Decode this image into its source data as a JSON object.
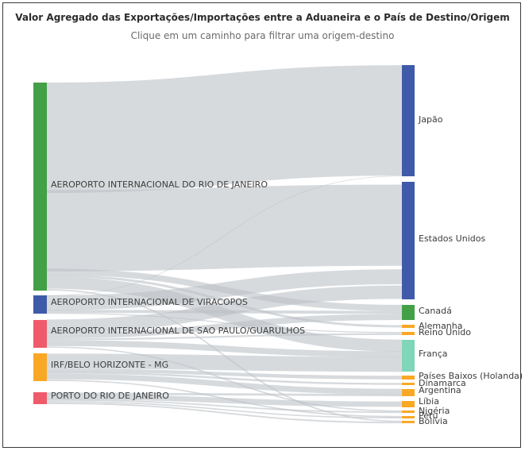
{
  "header": {
    "title": "Valor Agregado das Exportações/Importações entre a Aduaneira e o País de Destino/Origem",
    "subtitle": "Clique em um caminho para filtrar uma origem-destino"
  },
  "chart_data": {
    "type": "sankey",
    "sources": [
      {
        "name": "AEROPORTO INTERNACIONAL DO RIO DE JANEIRO",
        "color": "#43a047",
        "value": 66
      },
      {
        "name": "AEROPORTO INTERNACIONAL DE VIRACOPOS",
        "color": "#3f5aa8",
        "value": 6
      },
      {
        "name": "AEROPORTO INTERNACIONAL DE SAO PAULO/GUARULHOS",
        "color": "#ef5b6b",
        "value": 9
      },
      {
        "name": "IRF/BELO HORIZONTE - MG",
        "color": "#f9a825",
        "value": 9
      },
      {
        "name": "PORTO DO RIO DE JANEIRO",
        "color": "#ef5b6b",
        "value": 4
      }
    ],
    "targets": [
      {
        "name": "Japão",
        "color": "#3f5aa8"
      },
      {
        "name": "Estados Unidos",
        "color": "#3f5aa8"
      },
      {
        "name": "Canadá",
        "color": "#43a047"
      },
      {
        "name": "Alemanha",
        "color": "#f9a825"
      },
      {
        "name": "Reino Unido",
        "color": "#f9a825"
      },
      {
        "name": "França",
        "color": "#7fd6b8"
      },
      {
        "name": "Países Baixos (Holanda)",
        "color": "#f9a825"
      },
      {
        "name": "Dinamarca",
        "color": "#f9a825"
      },
      {
        "name": "Argentina",
        "color": "#f9a825"
      },
      {
        "name": "Líbia",
        "color": "#f9a825"
      },
      {
        "name": "Nigéria",
        "color": "#f9a825"
      },
      {
        "name": "Peru",
        "color": "#f9a825"
      },
      {
        "name": "Bolívia",
        "color": "#f9a825"
      }
    ],
    "links": [
      {
        "source": 0,
        "target": 0,
        "value": 35
      },
      {
        "source": 0,
        "target": 1,
        "value": 24
      },
      {
        "source": 0,
        "target": 2,
        "value": 2
      },
      {
        "source": 0,
        "target": 5,
        "value": 4
      },
      {
        "source": 0,
        "target": 3,
        "value": 0.5
      },
      {
        "source": 0,
        "target": 12,
        "value": 0.5
      },
      {
        "source": 1,
        "target": 1,
        "value": 4.5
      },
      {
        "source": 1,
        "target": 2,
        "value": 1
      },
      {
        "source": 1,
        "target": 0,
        "value": 0.2
      },
      {
        "source": 1,
        "target": 4,
        "value": 0.3
      },
      {
        "source": 2,
        "target": 1,
        "value": 4
      },
      {
        "source": 2,
        "target": 2,
        "value": 2
      },
      {
        "source": 2,
        "target": 5,
        "value": 2
      },
      {
        "source": 2,
        "target": 4,
        "value": 0.5
      },
      {
        "source": 2,
        "target": 10,
        "value": 0.5
      },
      {
        "source": 3,
        "target": 5,
        "value": 5
      },
      {
        "source": 3,
        "target": 6,
        "value": 1
      },
      {
        "source": 3,
        "target": 8,
        "value": 2
      },
      {
        "source": 3,
        "target": 7,
        "value": 0.5
      },
      {
        "source": 3,
        "target": 11,
        "value": 0.5
      },
      {
        "source": 4,
        "target": 8,
        "value": 0.8
      },
      {
        "source": 4,
        "target": 9,
        "value": 1.5
      },
      {
        "source": 4,
        "target": 10,
        "value": 0.6
      },
      {
        "source": 4,
        "target": 11,
        "value": 0.5
      },
      {
        "source": 4,
        "target": 12,
        "value": 0.6
      }
    ]
  }
}
